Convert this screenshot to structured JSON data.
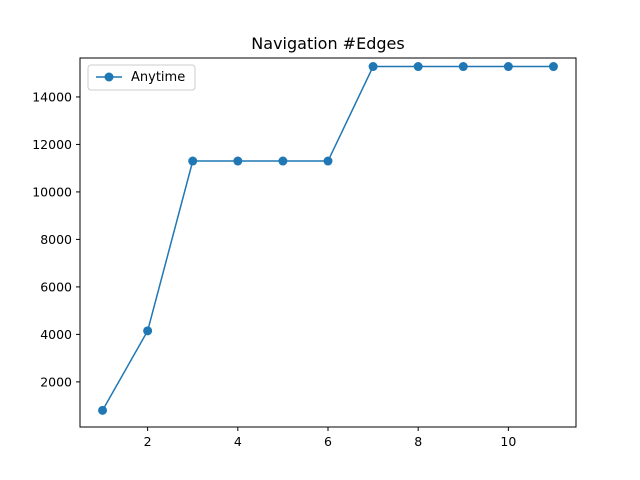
{
  "chart_data": {
    "type": "line",
    "title": "Navigation #Edges",
    "xlabel": "",
    "ylabel": "",
    "x": [
      1,
      2,
      3,
      4,
      5,
      6,
      7,
      8,
      9,
      10,
      11
    ],
    "series": [
      {
        "name": "Anytime",
        "values": [
          800,
          4150,
          11300,
          11300,
          11300,
          11300,
          15280,
          15280,
          15280,
          15280,
          15280
        ],
        "color": "#1f77b4",
        "marker": "circle"
      }
    ],
    "xlim": [
      0.5,
      11.5
    ],
    "ylim": [
      100,
      15640
    ],
    "xticks": [
      2,
      4,
      6,
      8,
      10
    ],
    "xtick_labels": [
      "2",
      "4",
      "6",
      "8",
      "10"
    ],
    "yticks": [
      2000,
      4000,
      6000,
      8000,
      10000,
      12000,
      14000
    ],
    "ytick_labels": [
      "2000",
      "4000",
      "6000",
      "8000",
      "10000",
      "12000",
      "14000"
    ],
    "grid": false,
    "legend_position": "top-left"
  }
}
